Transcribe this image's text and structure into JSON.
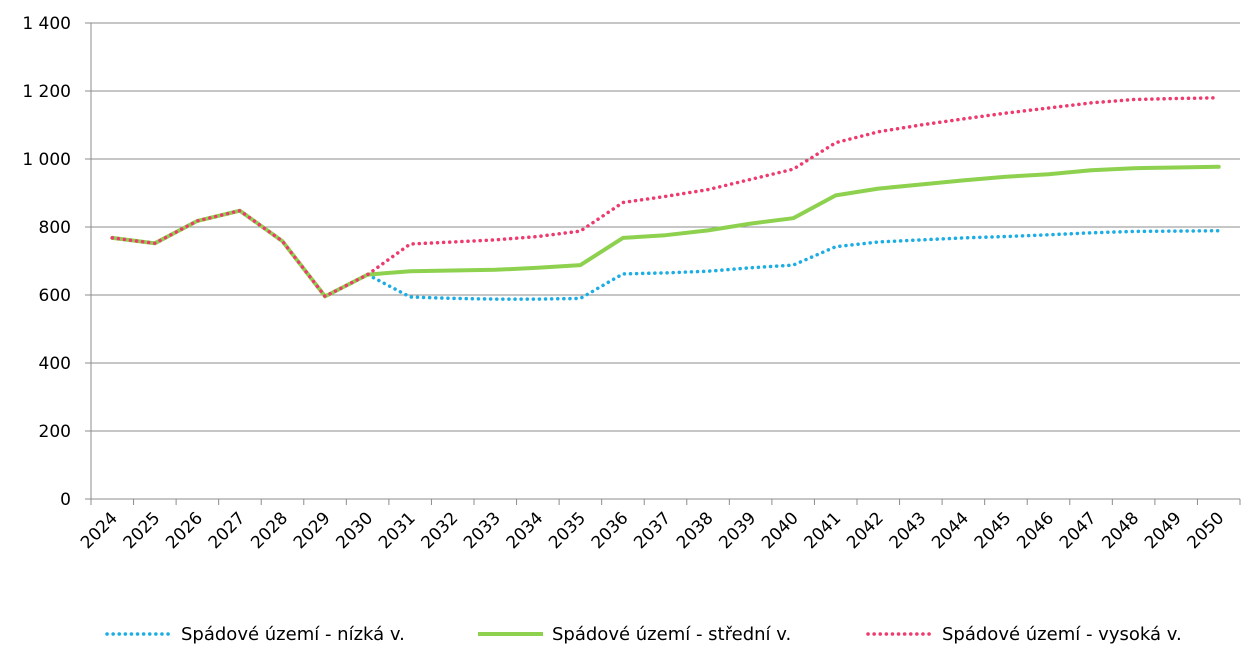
{
  "chart_data": {
    "type": "line",
    "title": "",
    "xlabel": "",
    "ylabel": "",
    "ylim": [
      0,
      1400
    ],
    "yticks": [
      0,
      200,
      400,
      600,
      800,
      1000,
      1200,
      1400
    ],
    "ytick_labels": [
      "0",
      "200",
      "400",
      "600",
      "800",
      "1 000",
      "1 200",
      "1 400"
    ],
    "categories": [
      "2024",
      "2025",
      "2026",
      "2027",
      "2028",
      "2029",
      "2030",
      "2031",
      "2032",
      "2033",
      "2034",
      "2035",
      "2036",
      "2037",
      "2038",
      "2039",
      "2040",
      "2041",
      "2042",
      "2043",
      "2044",
      "2045",
      "2046",
      "2047",
      "2048",
      "2049",
      "2050"
    ],
    "grid": true,
    "legend_position": "bottom",
    "series": [
      {
        "name": "Spádové území - nízká v.",
        "color": "#1CADE4",
        "style": "dotted",
        "values": [
          768,
          752,
          818,
          848,
          758,
          596,
          660,
          594,
          590,
          588,
          588,
          590,
          662,
          665,
          670,
          680,
          688,
          742,
          756,
          762,
          768,
          772,
          777,
          783,
          787,
          788,
          789
        ]
      },
      {
        "name": "Spádové území - střední v.",
        "color": "#8DD14F",
        "style": "solid",
        "values": [
          768,
          752,
          818,
          848,
          758,
          596,
          660,
          670,
          672,
          674,
          680,
          688,
          768,
          776,
          790,
          810,
          826,
          893,
          913,
          925,
          937,
          948,
          955,
          967,
          973,
          975,
          977
        ]
      },
      {
        "name": "Spádové území - vysoká v.",
        "color": "#EE3A6E",
        "style": "dotted",
        "values": [
          768,
          752,
          818,
          848,
          758,
          596,
          660,
          750,
          756,
          762,
          772,
          788,
          872,
          890,
          910,
          940,
          970,
          1048,
          1080,
          1100,
          1118,
          1135,
          1150,
          1165,
          1175,
          1178,
          1180
        ]
      }
    ]
  }
}
